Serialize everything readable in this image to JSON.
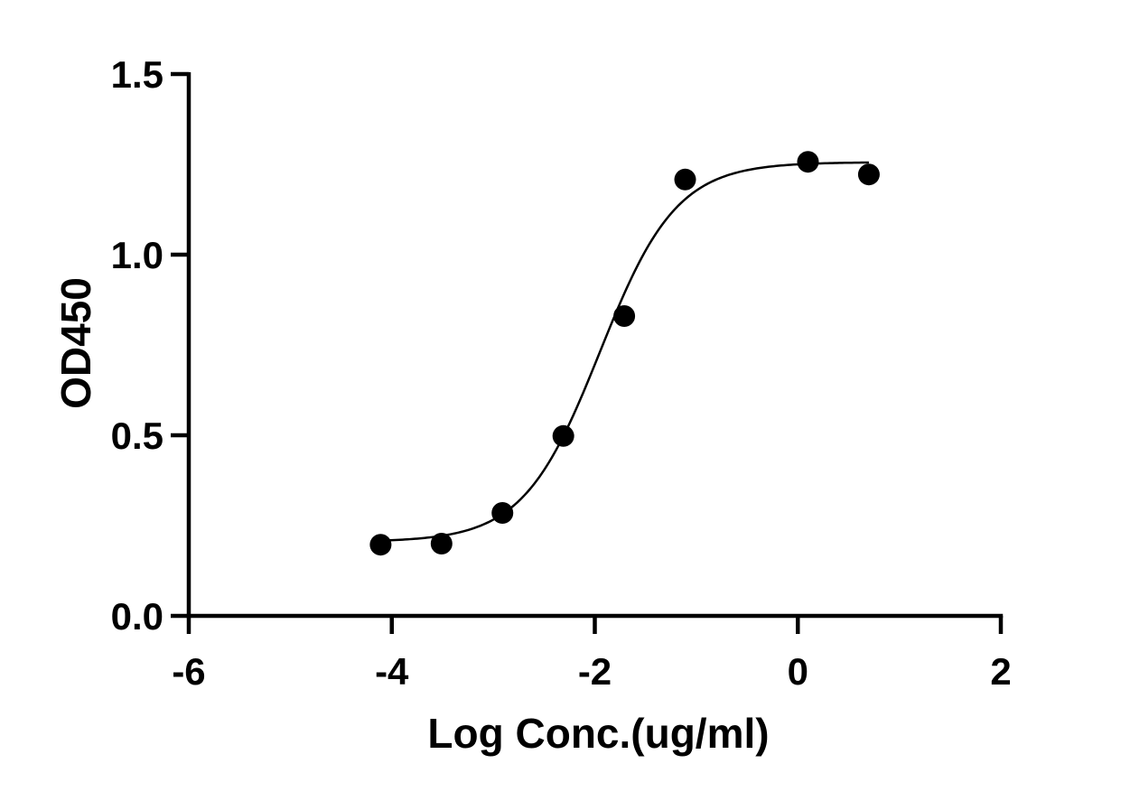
{
  "chart_data": {
    "type": "scatter",
    "title": "",
    "xlabel": "Log Conc.(ug/ml)",
    "ylabel": "OD450",
    "xlim": [
      -6,
      2
    ],
    "ylim": [
      0,
      1.5
    ],
    "x_ticks": [
      -6,
      -4,
      -2,
      0,
      2
    ],
    "x_tick_labels": [
      "-6",
      "-4",
      "-2",
      "0",
      "2"
    ],
    "y_ticks": [
      0,
      0.5,
      1.0,
      1.5
    ],
    "y_tick_labels": [
      "0.0",
      "0.5",
      "1.0",
      "1.5"
    ],
    "grid": false,
    "legend": "none",
    "series": [
      {
        "x": [
          -4.11,
          -3.51,
          -2.91,
          -2.31,
          -1.71,
          -1.11,
          0.1,
          0.7
        ],
        "y": [
          0.197,
          0.2,
          0.285,
          0.498,
          0.83,
          1.208,
          1.257,
          1.222
        ],
        "marker": "circle",
        "fit": "four-parameter logistic",
        "fit_range": [
          -4.11,
          0.7
        ]
      }
    ],
    "colors": {
      "points": "#000000",
      "curve": "#000000",
      "axes": "#000000"
    }
  }
}
